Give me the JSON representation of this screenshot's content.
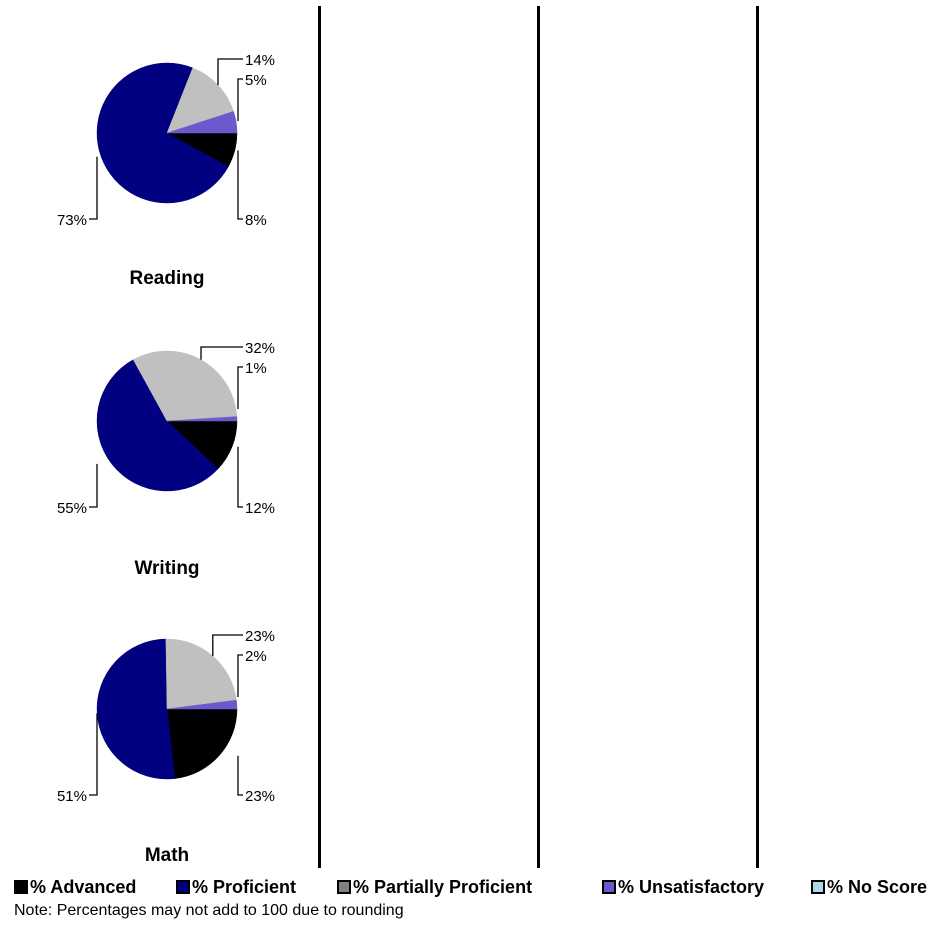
{
  "chart_data": [
    {
      "type": "pie",
      "title": "Reading",
      "slices": [
        {
          "label": "% Advanced",
          "value": 8,
          "display": "8%"
        },
        {
          "label": "% Proficient",
          "value": 73,
          "display": "73%"
        },
        {
          "label": "% Partially Proficient",
          "value": 14,
          "display": "14%"
        },
        {
          "label": "% Unsatisfactory",
          "value": 5,
          "display": "5%"
        },
        {
          "label": "% No Score",
          "value": 0,
          "display": ""
        }
      ]
    },
    {
      "type": "pie",
      "title": "Writing",
      "slices": [
        {
          "label": "% Advanced",
          "value": 12,
          "display": "12%"
        },
        {
          "label": "% Proficient",
          "value": 55,
          "display": "55%"
        },
        {
          "label": "% Partially Proficient",
          "value": 32,
          "display": "32%"
        },
        {
          "label": "% Unsatisfactory",
          "value": 1,
          "display": "1%"
        },
        {
          "label": "% No Score",
          "value": 0,
          "display": ""
        }
      ]
    },
    {
      "type": "pie",
      "title": "Math",
      "slices": [
        {
          "label": "% Advanced",
          "value": 23,
          "display": "23%"
        },
        {
          "label": "% Proficient",
          "value": 51,
          "display": "51%"
        },
        {
          "label": "% Partially Proficient",
          "value": 23,
          "display": "23%"
        },
        {
          "label": "% Unsatisfactory",
          "value": 2,
          "display": "2%"
        },
        {
          "label": "% No Score",
          "value": 0,
          "display": ""
        }
      ]
    }
  ],
  "legend": {
    "items": [
      {
        "label": "% Advanced",
        "color": "#000000"
      },
      {
        "label": "% Proficient",
        "color": "#000080"
      },
      {
        "label": "% Partially Proficient",
        "color": "#808080"
      },
      {
        "label": "% Unsatisfactory",
        "color": "#6a5acd"
      },
      {
        "label": "% No Score",
        "color": "#add8e6"
      }
    ]
  },
  "slice_colors": [
    "#000000",
    "#000080",
    "#c0c0c0",
    "#6a5acd",
    "#add8e6"
  ],
  "note": "Note: Percentages may not add to 100 due to rounding"
}
